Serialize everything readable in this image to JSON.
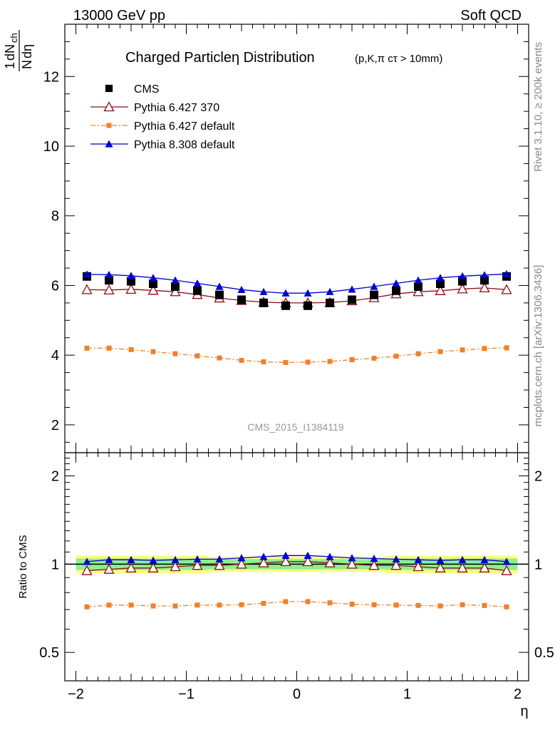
{
  "header": {
    "left": "13000 GeV pp",
    "right": "Soft QCD"
  },
  "side_labels": {
    "rivet": "Rivet 3.1.10, ≥ 200k events",
    "mcplots": "mcplots.cern.ch [arXiv:1306.3436]"
  },
  "chart_data": {
    "type": "line",
    "title": "Charged Particleη Distribution",
    "title_sub": "(p,K,π cτ > 10mm)",
    "watermark": "CMS_2015_I1384119",
    "xlabel": "η",
    "ylabel_main": {
      "num_a": "1",
      "num_b": "dN",
      "num_sub": "ch",
      "den_a": "N",
      "den_b": "dη"
    },
    "ylabel_ratio": "Ratio to CMS",
    "xlim": [
      -2.1,
      2.1
    ],
    "ylim_main": [
      1.2,
      13.5
    ],
    "ylim_ratio": [
      0.4,
      2.4
    ],
    "x_ticks": [
      {
        "value": -2,
        "label": "−2"
      },
      {
        "value": -1,
        "label": "−1"
      },
      {
        "value": 0,
        "label": "0"
      },
      {
        "value": 1,
        "label": "1"
      },
      {
        "value": 2,
        "label": "2"
      }
    ],
    "main_y_ticks": [
      {
        "value": 2,
        "label": "2"
      },
      {
        "value": 4,
        "label": "4"
      },
      {
        "value": 6,
        "label": "6"
      },
      {
        "value": 8,
        "label": "8"
      },
      {
        "value": 10,
        "label": "10"
      },
      {
        "value": 12,
        "label": "12"
      }
    ],
    "ratio_y_ticks": [
      {
        "value": 0.5,
        "label": "0.5"
      },
      {
        "value": 1,
        "label": "1"
      },
      {
        "value": 2,
        "label": "2"
      }
    ],
    "x": [
      -1.9,
      -1.7,
      -1.5,
      -1.3,
      -1.1,
      -0.9,
      -0.7,
      -0.5,
      -0.3,
      -0.1,
      0.1,
      0.3,
      0.5,
      0.7,
      0.9,
      1.1,
      1.3,
      1.5,
      1.7,
      1.9
    ],
    "series": [
      {
        "name": "CMS",
        "color": "#000000",
        "marker": "square",
        "values": [
          6.26,
          6.15,
          6.12,
          6.05,
          5.97,
          5.85,
          5.73,
          5.59,
          5.5,
          5.42,
          5.42,
          5.5,
          5.59,
          5.73,
          5.85,
          5.97,
          6.05,
          6.12,
          6.15,
          6.26
        ],
        "ratio": [
          1,
          1,
          1,
          1,
          1,
          1,
          1,
          1,
          1,
          1,
          1,
          1,
          1,
          1,
          1,
          1,
          1,
          1,
          1,
          1
        ]
      },
      {
        "name": "Pythia 6.427 370",
        "color": "#8b0d1a",
        "marker": "open-triangle",
        "dash": "solid",
        "values": [
          5.88,
          5.87,
          5.89,
          5.86,
          5.82,
          5.74,
          5.64,
          5.57,
          5.52,
          5.5,
          5.5,
          5.51,
          5.56,
          5.65,
          5.76,
          5.82,
          5.85,
          5.9,
          5.93,
          5.88
        ],
        "ratio": [
          0.95,
          0.96,
          0.97,
          0.97,
          0.98,
          0.99,
          0.99,
          1.0,
          1.01,
          1.02,
          1.02,
          1.01,
          1.0,
          0.99,
          0.99,
          0.98,
          0.97,
          0.97,
          0.97,
          0.95
        ]
      },
      {
        "name": "Pythia 6.427 default",
        "color": "#f0802c",
        "marker": "small-square",
        "dash": "dashdot",
        "values": [
          4.2,
          4.2,
          4.16,
          4.1,
          4.04,
          3.98,
          3.92,
          3.85,
          3.81,
          3.79,
          3.8,
          3.82,
          3.87,
          3.91,
          3.97,
          4.04,
          4.1,
          4.15,
          4.19,
          4.21
        ],
        "ratio": [
          0.715,
          0.725,
          0.725,
          0.72,
          0.72,
          0.725,
          0.725,
          0.727,
          0.735,
          0.745,
          0.745,
          0.738,
          0.73,
          0.727,
          0.725,
          0.723,
          0.72,
          0.727,
          0.723,
          0.715
        ]
      },
      {
        "name": "Pythia 8.308 default",
        "color": "#0000d0",
        "marker": "filled-triangle",
        "dash": "solid",
        "values": [
          6.32,
          6.31,
          6.28,
          6.22,
          6.15,
          6.06,
          5.97,
          5.88,
          5.82,
          5.78,
          5.78,
          5.82,
          5.89,
          5.97,
          6.06,
          6.15,
          6.22,
          6.27,
          6.3,
          6.33
        ],
        "ratio": [
          1.02,
          1.035,
          1.035,
          1.03,
          1.035,
          1.04,
          1.04,
          1.05,
          1.06,
          1.07,
          1.07,
          1.06,
          1.05,
          1.045,
          1.04,
          1.035,
          1.03,
          1.035,
          1.035,
          1.02
        ]
      }
    ],
    "bands": {
      "yellow": {
        "color": "#ffff80",
        "half_width": [
          0.07,
          0.07,
          0.07,
          0.07,
          0.07,
          0.07,
          0.06,
          0.06,
          0.06,
          0.06,
          0.06,
          0.06,
          0.06,
          0.06,
          0.07,
          0.07,
          0.07,
          0.07,
          0.07,
          0.07
        ]
      },
      "green": {
        "color": "#90ee90",
        "half_width": [
          0.045,
          0.045,
          0.045,
          0.045,
          0.045,
          0.045,
          0.04,
          0.04,
          0.04,
          0.04,
          0.04,
          0.04,
          0.04,
          0.04,
          0.045,
          0.045,
          0.045,
          0.045,
          0.045,
          0.045
        ]
      }
    }
  }
}
